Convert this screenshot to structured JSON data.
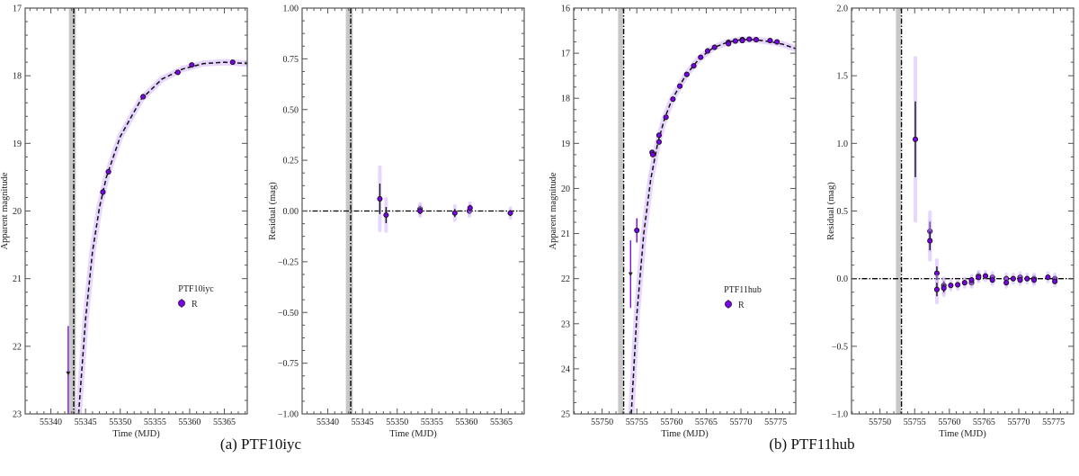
{
  "captions": [
    "(a) PTF10iyc",
    "(b) PTF11hub"
  ],
  "colors": {
    "data": "#7b00f0",
    "band": "#c9a6ff",
    "explosion_band": "#c8c8c8",
    "model": "#111111",
    "axes": "#555555"
  },
  "chart_data": [
    {
      "type": "scatter",
      "title": "",
      "xlabel": "Time (MJD)",
      "ylabel": "Apparent magnitude",
      "xlim": [
        55336.3,
        55368.3
      ],
      "ylim": [
        23,
        17
      ],
      "inverted_y": true,
      "xticks": [
        55340,
        55345,
        55350,
        55355,
        55360,
        55365
      ],
      "yticks": [
        17,
        18,
        19,
        20,
        21,
        22,
        23
      ],
      "y_minor_step": 0.2,
      "ytick_decimals": 0,
      "legend": {
        "title": "PTF10iyc",
        "entries": [
          "R"
        ],
        "placement": "center-right"
      },
      "explosion": {
        "t": 55343.3,
        "band": [
          55342.6,
          55343.6
        ]
      },
      "upper_limits": [
        {
          "x": 55342.5,
          "y": 22.4,
          "bar": [
            21.7,
            23.0
          ]
        }
      ],
      "points": [
        {
          "x": 55347.5,
          "y": 19.72,
          "err": 0.05
        },
        {
          "x": 55348.3,
          "y": 19.42,
          "err": 0.04
        },
        {
          "x": 55353.3,
          "y": 18.31,
          "err": 0.02
        },
        {
          "x": 55358.3,
          "y": 17.95,
          "err": 0.02
        },
        {
          "x": 55360.3,
          "y": 17.84,
          "err": 0.02
        },
        {
          "x": 55366.2,
          "y": 17.8,
          "err": 0.02
        }
      ],
      "model": [
        [
          55344.0,
          23.0
        ],
        [
          55345,
          21.6
        ],
        [
          55346,
          20.6
        ],
        [
          55347,
          19.95
        ],
        [
          55348,
          19.5
        ],
        [
          55350,
          18.9
        ],
        [
          55353,
          18.35
        ],
        [
          55356,
          18.05
        ],
        [
          55359,
          17.9
        ],
        [
          55362,
          17.82
        ],
        [
          55365,
          17.8
        ],
        [
          55368.3,
          17.82
        ]
      ]
    },
    {
      "type": "scatter",
      "title": "",
      "xlabel": "Time (MJD)",
      "ylabel": "Residual (mag)",
      "xlim": [
        55336.3,
        55368.3
      ],
      "ylim": [
        -1.0,
        1.0
      ],
      "inverted_y": false,
      "xticks": [
        55340,
        55345,
        55350,
        55355,
        55360,
        55365
      ],
      "yticks": [
        -1.0,
        -0.75,
        -0.5,
        -0.25,
        0.0,
        0.25,
        0.5,
        0.75,
        1.0
      ],
      "y_minor_step": 0.0625,
      "ytick_decimals": 2,
      "zero_line": 0,
      "explosion": {
        "t": 55343.3,
        "band": [
          55342.6,
          55343.6
        ]
      },
      "points": [
        {
          "x": 55347.5,
          "y": 0.06,
          "err": 0.075
        },
        {
          "x": 55348.4,
          "y": -0.02,
          "err": 0.04
        },
        {
          "x": 55353.3,
          "y": 0.01,
          "err": 0.015
        },
        {
          "x": 55353.3,
          "y": 0.0,
          "err": 0.015
        },
        {
          "x": 55358.3,
          "y": -0.01,
          "err": 0.02
        },
        {
          "x": 55360.4,
          "y": 0.0,
          "err": 0.015
        },
        {
          "x": 55360.5,
          "y": 0.015,
          "err": 0.015
        },
        {
          "x": 55366.3,
          "y": -0.01,
          "err": 0.015
        }
      ]
    },
    {
      "type": "scatter",
      "title": "",
      "xlabel": "Time (MJD)",
      "ylabel": "Apparent magnitude",
      "xlim": [
        55745.9,
        55777.9
      ],
      "ylim": [
        25,
        16
      ],
      "inverted_y": true,
      "xticks": [
        55750,
        55755,
        55760,
        55765,
        55770,
        55775
      ],
      "yticks": [
        16,
        17,
        18,
        19,
        20,
        21,
        22,
        23,
        24,
        25
      ],
      "y_minor_step": 0.25,
      "ytick_decimals": 0,
      "legend": {
        "title": "PTF11hub",
        "entries": [
          "R"
        ],
        "placement": "lower-right"
      },
      "explosion": {
        "t": 55753.1,
        "band": [
          55752.3,
          55753.0
        ]
      },
      "upper_limits": [
        {
          "x": 55754.1,
          "y": 21.9,
          "bar": [
            21.15,
            22.65
          ]
        }
      ],
      "points": [
        {
          "x": 55755.0,
          "y": 20.93,
          "err": 0.27
        },
        {
          "x": 55757.2,
          "y": 19.2,
          "err": 0.06
        },
        {
          "x": 55757.3,
          "y": 19.25,
          "err": 0.05
        },
        {
          "x": 55758.2,
          "y": 18.82,
          "err": 0.04
        },
        {
          "x": 55758.2,
          "y": 18.97,
          "err": 0.04
        },
        {
          "x": 55759.2,
          "y": 18.42,
          "err": 0.03
        },
        {
          "x": 55760.2,
          "y": 18.02,
          "err": 0.02
        },
        {
          "x": 55761.2,
          "y": 17.73,
          "err": 0.02
        },
        {
          "x": 55762.2,
          "y": 17.47,
          "err": 0.02
        },
        {
          "x": 55763.2,
          "y": 17.28,
          "err": 0.02
        },
        {
          "x": 55764.2,
          "y": 17.09,
          "err": 0.02
        },
        {
          "x": 55765.2,
          "y": 16.95,
          "err": 0.02
        },
        {
          "x": 55766.2,
          "y": 16.87,
          "err": 0.02
        },
        {
          "x": 55768.2,
          "y": 16.76,
          "err": 0.02
        },
        {
          "x": 55768.2,
          "y": 16.79,
          "err": 0.02
        },
        {
          "x": 55769.2,
          "y": 16.73,
          "err": 0.02
        },
        {
          "x": 55770.2,
          "y": 16.7,
          "err": 0.02
        },
        {
          "x": 55770.2,
          "y": 16.72,
          "err": 0.02
        },
        {
          "x": 55771.2,
          "y": 16.69,
          "err": 0.02
        },
        {
          "x": 55772.2,
          "y": 16.7,
          "err": 0.02
        },
        {
          "x": 55774.2,
          "y": 16.72,
          "err": 0.02
        },
        {
          "x": 55775.2,
          "y": 16.75,
          "err": 0.02
        }
      ],
      "model": [
        [
          55754.2,
          25.0
        ],
        [
          55755,
          22.8
        ],
        [
          55756,
          21.0
        ],
        [
          55757,
          19.8
        ],
        [
          55758,
          19.0
        ],
        [
          55759,
          18.45
        ],
        [
          55760,
          18.05
        ],
        [
          55762,
          17.5
        ],
        [
          55764,
          17.12
        ],
        [
          55766,
          16.88
        ],
        [
          55768,
          16.76
        ],
        [
          55770,
          16.7
        ],
        [
          55772,
          16.7
        ],
        [
          55774,
          16.74
        ],
        [
          55776,
          16.8
        ],
        [
          55777.9,
          16.9
        ]
      ]
    },
    {
      "type": "scatter",
      "title": "",
      "xlabel": "Time (MJD)",
      "ylabel": "Residual (mag)",
      "xlim": [
        55745.9,
        55777.9
      ],
      "ylim": [
        -1.0,
        2.0
      ],
      "inverted_y": false,
      "xticks": [
        55750,
        55755,
        55760,
        55765,
        55770,
        55775
      ],
      "yticks": [
        -1.0,
        -0.5,
        0.0,
        0.5,
        1.0,
        1.5,
        2.0
      ],
      "y_minor_step": 0.1,
      "ytick_decimals": 1,
      "zero_line": 0,
      "explosion": {
        "t": 55753.1,
        "band": [
          55752.3,
          55753.0
        ]
      },
      "points": [
        {
          "x": 55755.1,
          "y": 1.03,
          "err": 0.28
        },
        {
          "x": 55757.2,
          "y": 0.35,
          "err": 0.07
        },
        {
          "x": 55757.2,
          "y": 0.28,
          "err": 0.07
        },
        {
          "x": 55758.2,
          "y": 0.04,
          "err": 0.05
        },
        {
          "x": 55758.2,
          "y": -0.08,
          "err": 0.05
        },
        {
          "x": 55759.2,
          "y": -0.05,
          "err": 0.03
        },
        {
          "x": 55759.2,
          "y": -0.07,
          "err": 0.03
        },
        {
          "x": 55760.2,
          "y": -0.05,
          "err": 0.02
        },
        {
          "x": 55761.2,
          "y": -0.045,
          "err": 0.02
        },
        {
          "x": 55762.2,
          "y": -0.03,
          "err": 0.02
        },
        {
          "x": 55763.2,
          "y": -0.03,
          "err": 0.02
        },
        {
          "x": 55763.2,
          "y": -0.01,
          "err": 0.02
        },
        {
          "x": 55764.2,
          "y": 0.02,
          "err": 0.02
        },
        {
          "x": 55764.2,
          "y": 0.01,
          "err": 0.02
        },
        {
          "x": 55765.2,
          "y": 0.02,
          "err": 0.02
        },
        {
          "x": 55766.2,
          "y": 0.01,
          "err": 0.02
        },
        {
          "x": 55766.2,
          "y": -0.01,
          "err": 0.02
        },
        {
          "x": 55768.2,
          "y": 0.0,
          "err": 0.02
        },
        {
          "x": 55768.2,
          "y": -0.03,
          "err": 0.02
        },
        {
          "x": 55769.2,
          "y": 0.0,
          "err": 0.02
        },
        {
          "x": 55770.2,
          "y": 0.01,
          "err": 0.02
        },
        {
          "x": 55770.2,
          "y": -0.01,
          "err": 0.02
        },
        {
          "x": 55771.2,
          "y": 0.0,
          "err": 0.02
        },
        {
          "x": 55772.2,
          "y": 0.0,
          "err": 0.02
        },
        {
          "x": 55772.2,
          "y": -0.01,
          "err": 0.02
        },
        {
          "x": 55774.2,
          "y": 0.01,
          "err": 0.02
        },
        {
          "x": 55775.2,
          "y": 0.0,
          "err": 0.02
        },
        {
          "x": 55775.2,
          "y": -0.02,
          "err": 0.02
        }
      ]
    }
  ]
}
